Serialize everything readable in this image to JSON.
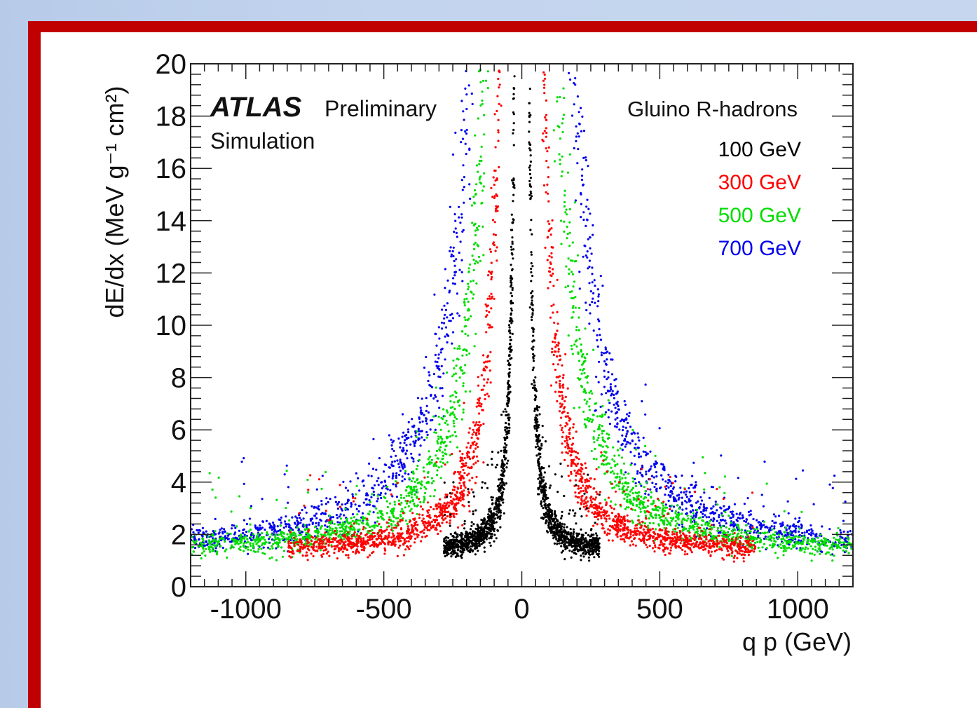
{
  "chart_data": {
    "type": "scatter",
    "title": "",
    "xlabel": "q p (GeV)",
    "ylabel": "dE/dx (MeV g⁻¹ cm²)",
    "xlim": [
      -1200,
      1200
    ],
    "ylim": [
      0,
      20
    ],
    "xticks": [
      -1000,
      -500,
      0,
      500,
      1000
    ],
    "xtick_labels": [
      "-1000",
      "-500",
      "0",
      "500",
      "1000"
    ],
    "yticks": [
      0,
      2,
      4,
      6,
      8,
      10,
      12,
      14,
      16,
      18,
      20
    ],
    "ytick_labels": [
      "0",
      "2",
      "4",
      "6",
      "8",
      "10",
      "12",
      "14",
      "16",
      "18",
      "20"
    ],
    "grid": false,
    "legend_position": "top-right",
    "annotations": {
      "experiment": "ATLAS",
      "status": "Preliminary",
      "subtitle": "Simulation",
      "legend_header": "Gluino R-hadrons"
    },
    "series": [
      {
        "name": "100 GeV",
        "mass": 100,
        "color": "#000000"
      },
      {
        "name": "300 GeV",
        "mass": 300,
        "color": "#ff0000"
      },
      {
        "name": "500 GeV",
        "mass": 500,
        "color": "#00dd00"
      },
      {
        "name": "700 GeV",
        "mass": 700,
        "color": "#0000ee"
      }
    ]
  }
}
